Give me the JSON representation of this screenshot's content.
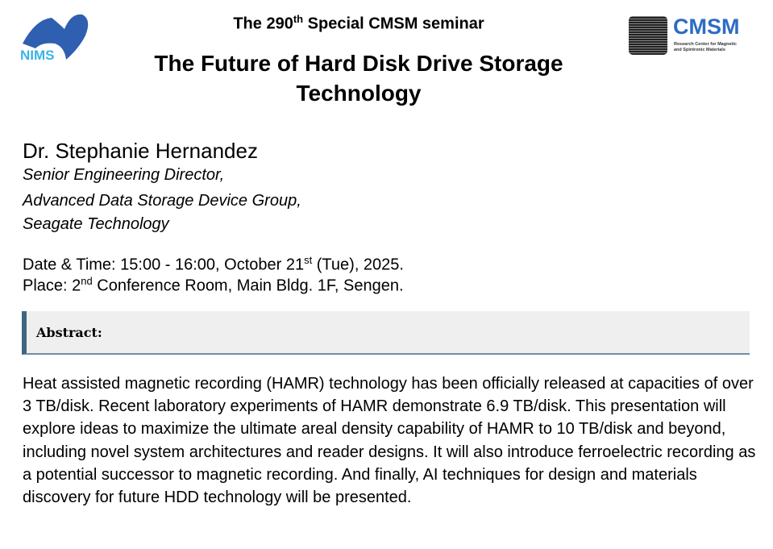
{
  "header": {
    "seminar_prefix": "The 290",
    "seminar_sup": "th",
    "seminar_suffix": " Special CMSM seminar",
    "title_line1": "The Future of Hard Disk Drive Storage",
    "title_line2": "Technology"
  },
  "logos": {
    "left": "NIMS",
    "right": "CMSM",
    "right_sub1": "Research Center for Magnetic",
    "right_sub2": "and Spintronic Materials",
    "nims_color": "#2f5fb0",
    "nims_text_color": "#3bb3e8",
    "cmsm_color": "#2f6bc4"
  },
  "speaker": {
    "name": "Dr. Stephanie Hernandez",
    "affiliation": [
      "Senior Engineering Director,",
      "Advanced Data Storage Device Group,",
      "Seagate Technology"
    ]
  },
  "info": {
    "date_prefix": "Date & Time: 15:00 - 16:00, October 21",
    "date_sup": "st",
    "date_suffix": " (Tue), 2025.",
    "place_prefix": "Place: 2",
    "place_sup": "nd",
    "place_suffix": " Conference Room, Main Bldg. 1F, Sengen."
  },
  "abstract": {
    "heading": "Abstract:",
    "text": "Heat assisted magnetic recording (HAMR) technology has been officially released at capacities of over 3 TB/disk. Recent laboratory experiments of HAMR demonstrate 6.9 TB/disk. This presentation will explore ideas to maximize the ultimate areal density capability of HAMR to 10 TB/disk and beyond, including novel system architectures and reader designs. It will also introduce ferroelectric recording as a potential successor to magnetic recording. And finally, AI techniques for design and materials discovery for future HDD technology will be presented."
  }
}
